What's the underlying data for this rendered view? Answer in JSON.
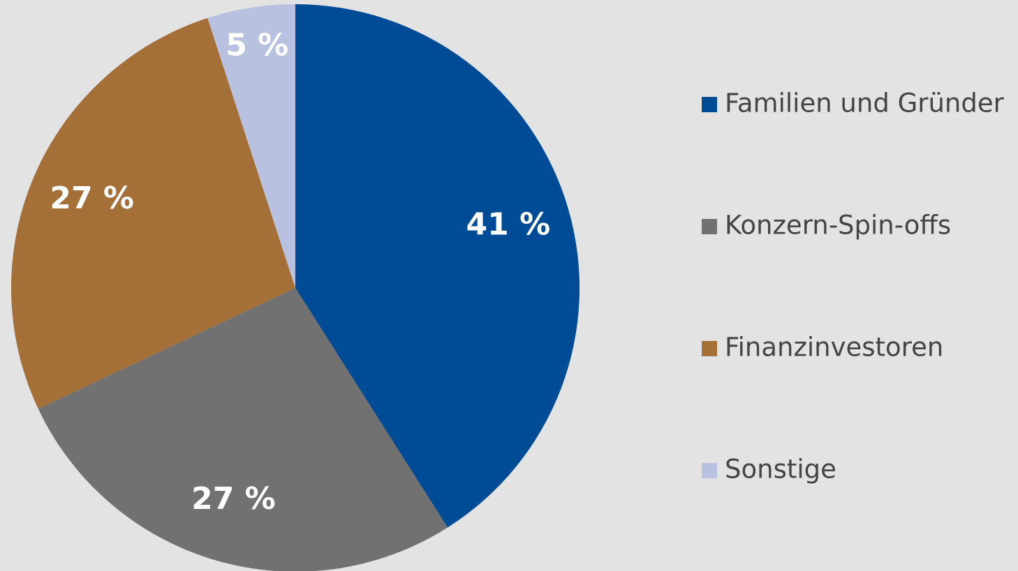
{
  "chart_data": {
    "type": "pie",
    "categories": [
      "Familien und Gründer",
      "Konzern-Spin-offs",
      "Finanzinvestoren",
      "Sonstige"
    ],
    "values": [
      41,
      27,
      27,
      5
    ],
    "value_labels": [
      "41 %",
      "27 %",
      "27 %",
      "5 %"
    ],
    "colors": [
      "#004b96",
      "#717171",
      "#a56f38",
      "#b8c1e0"
    ],
    "legend": "right"
  }
}
